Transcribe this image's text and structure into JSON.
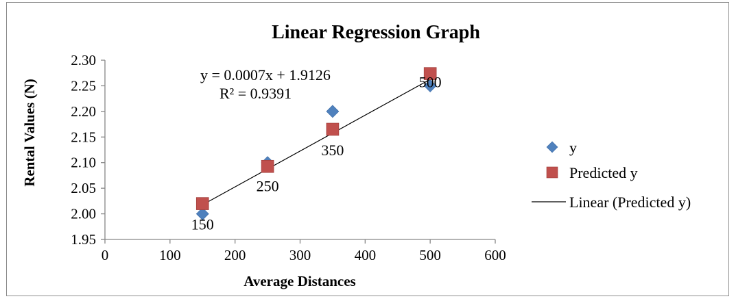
{
  "chart_data": {
    "type": "scatter",
    "title": "Linear Regression Graph",
    "xlabel": "Average Distances",
    "ylabel": "Rental Values (N)",
    "xlim": [
      0,
      600
    ],
    "ylim": [
      1.95,
      2.3
    ],
    "x_ticks": [
      "0",
      "100",
      "200",
      "300",
      "400",
      "500",
      "600"
    ],
    "y_ticks": [
      "1.95",
      "2.00",
      "2.05",
      "2.10",
      "2.15",
      "2.20",
      "2.25",
      "2.30"
    ],
    "x_tick_values": [
      0,
      100,
      200,
      300,
      400,
      500,
      600
    ],
    "y_tick_values": [
      1.95,
      2.0,
      2.05,
      2.1,
      2.15,
      2.2,
      2.25,
      2.3
    ],
    "grid": false,
    "legend_position": "right",
    "series": [
      {
        "name": "y",
        "marker": "diamond",
        "color": "#4F81BD",
        "points": [
          [
            150,
            2.0
          ],
          [
            250,
            2.1
          ],
          [
            350,
            2.2
          ],
          [
            500,
            2.25
          ]
        ]
      },
      {
        "name": "Predicted y",
        "marker": "square",
        "color": "#C0504D",
        "points": [
          [
            150,
            2.02
          ],
          [
            250,
            2.0926
          ],
          [
            350,
            2.1651
          ],
          [
            500,
            2.2738
          ]
        ]
      }
    ],
    "trendline": {
      "name": "Linear (Predicted y)",
      "color": "#000000",
      "x_range": [
        150,
        500
      ],
      "slope": 0.0007,
      "intercept": 1.9126
    },
    "annotations": {
      "equation": "y = 0.0007x + 1.9126",
      "r_squared": "R² = 0.9391",
      "data_labels": [
        "150",
        "250",
        "350",
        "500"
      ]
    }
  }
}
